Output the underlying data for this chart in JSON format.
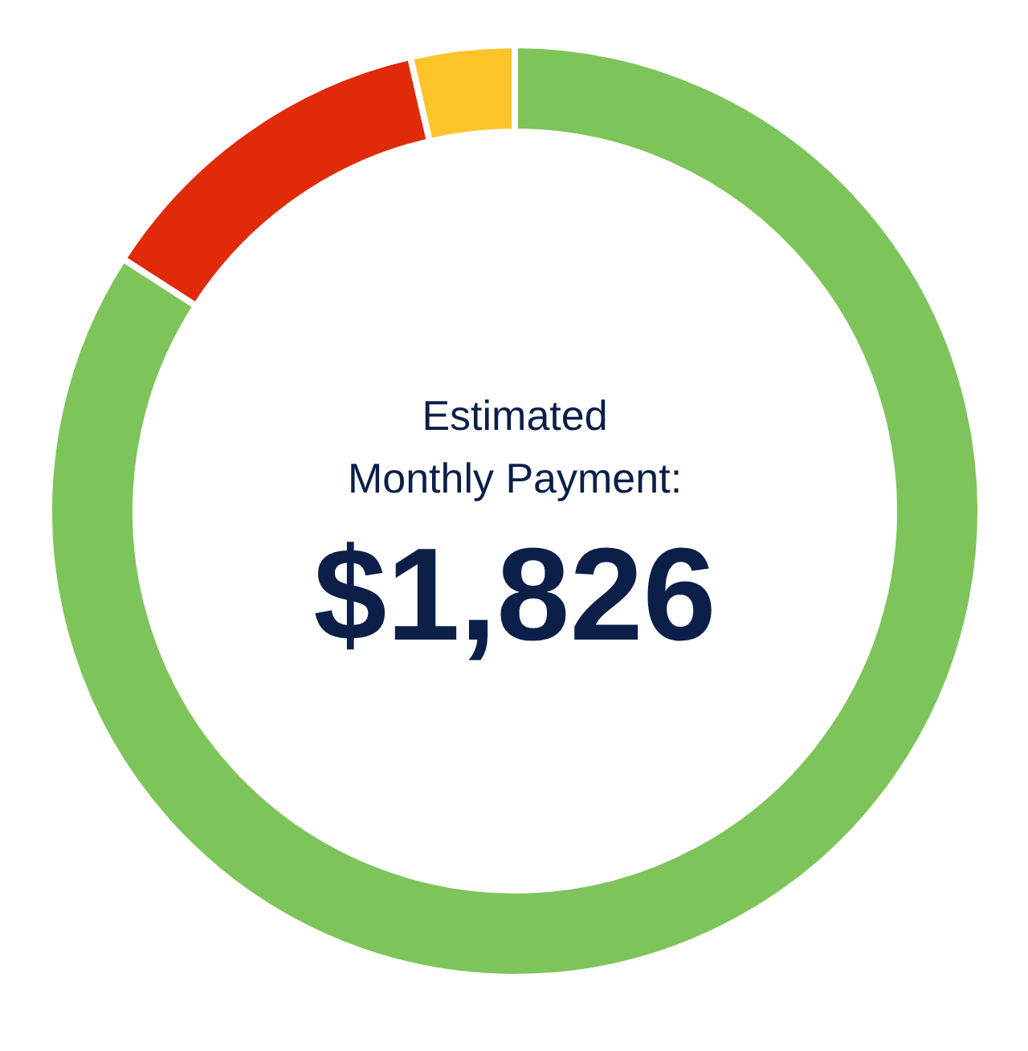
{
  "chart_data": {
    "type": "donut",
    "categories": [
      null,
      null,
      null
    ],
    "values": [
      84.1,
      12.3,
      3.6
    ],
    "colors": [
      "#7dc45a",
      "#e02a0a",
      "#fdc42a"
    ],
    "annotations": [
      "Estimated\nMonthly Payment:",
      "$1,826"
    ]
  }
}
